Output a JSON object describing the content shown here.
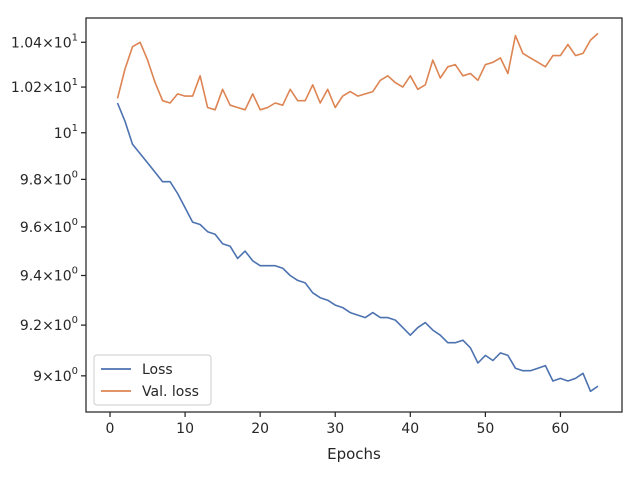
{
  "chart_data": {
    "type": "line",
    "title": "",
    "xlabel": "Epochs",
    "ylabel": "",
    "xlim": [
      -3.2,
      68.2
    ],
    "ylim": [
      8.86,
      10.51
    ],
    "yscale": "log",
    "grid": false,
    "legend_position": "bottom-left",
    "x_ticks": [
      0,
      10,
      20,
      30,
      40,
      50,
      60
    ],
    "x_tick_labels": [
      "0",
      "10",
      "20",
      "30",
      "40",
      "50",
      "60"
    ],
    "y_ticks": [
      9.0,
      9.2,
      9.4,
      9.6,
      9.8,
      10.0,
      10.2,
      10.4
    ],
    "y_tick_labels": [
      {
        "base": "9",
        "exp": "0",
        "mant": "9"
      },
      {
        "base": "9.2",
        "exp": "0"
      },
      {
        "base": "9.4",
        "exp": "0"
      },
      {
        "base": "9.6",
        "exp": "0"
      },
      {
        "base": "9.8",
        "exp": "0"
      },
      {
        "base": "",
        "exp": "1"
      },
      {
        "base": "1.02",
        "exp": "1"
      },
      {
        "base": "1.04",
        "exp": "1"
      }
    ],
    "x": [
      1,
      2,
      3,
      4,
      5,
      6,
      7,
      8,
      9,
      10,
      11,
      12,
      13,
      14,
      15,
      16,
      17,
      18,
      19,
      20,
      21,
      22,
      23,
      24,
      25,
      26,
      27,
      28,
      29,
      30,
      31,
      32,
      33,
      34,
      35,
      36,
      37,
      38,
      39,
      40,
      41,
      42,
      43,
      44,
      45,
      46,
      47,
      48,
      49,
      50,
      51,
      52,
      53,
      54,
      55,
      56,
      57,
      58,
      59,
      60,
      61,
      62,
      63,
      64,
      65
    ],
    "series": [
      {
        "name": "Loss",
        "color": "#4c72b0",
        "values": [
          10.13,
          10.05,
          9.95,
          9.91,
          9.87,
          9.83,
          9.79,
          9.79,
          9.74,
          9.68,
          9.62,
          9.61,
          9.58,
          9.57,
          9.53,
          9.52,
          9.47,
          9.5,
          9.46,
          9.44,
          9.44,
          9.44,
          9.43,
          9.4,
          9.38,
          9.37,
          9.33,
          9.31,
          9.3,
          9.28,
          9.27,
          9.25,
          9.24,
          9.23,
          9.25,
          9.23,
          9.23,
          9.22,
          9.19,
          9.16,
          9.19,
          9.21,
          9.18,
          9.16,
          9.13,
          9.13,
          9.14,
          9.11,
          9.05,
          9.08,
          9.06,
          9.09,
          9.08,
          9.03,
          9.02,
          9.02,
          9.03,
          9.04,
          8.98,
          8.99,
          8.98,
          8.99,
          9.01,
          8.94,
          8.96
        ]
      },
      {
        "name": "Val. loss",
        "color": "#dd8452",
        "values": [
          10.15,
          10.28,
          10.38,
          10.4,
          10.32,
          10.22,
          10.14,
          10.13,
          10.17,
          10.16,
          10.16,
          10.25,
          10.11,
          10.1,
          10.19,
          10.12,
          10.11,
          10.1,
          10.17,
          10.1,
          10.11,
          10.13,
          10.12,
          10.19,
          10.14,
          10.14,
          10.21,
          10.13,
          10.19,
          10.11,
          10.16,
          10.18,
          10.16,
          10.17,
          10.18,
          10.23,
          10.25,
          10.22,
          10.2,
          10.25,
          10.19,
          10.21,
          10.32,
          10.24,
          10.29,
          10.3,
          10.25,
          10.26,
          10.23,
          10.3,
          10.31,
          10.33,
          10.26,
          10.43,
          10.35,
          10.33,
          10.31,
          10.29,
          10.34,
          10.34,
          10.39,
          10.34,
          10.35,
          10.41,
          10.44
        ]
      }
    ]
  }
}
